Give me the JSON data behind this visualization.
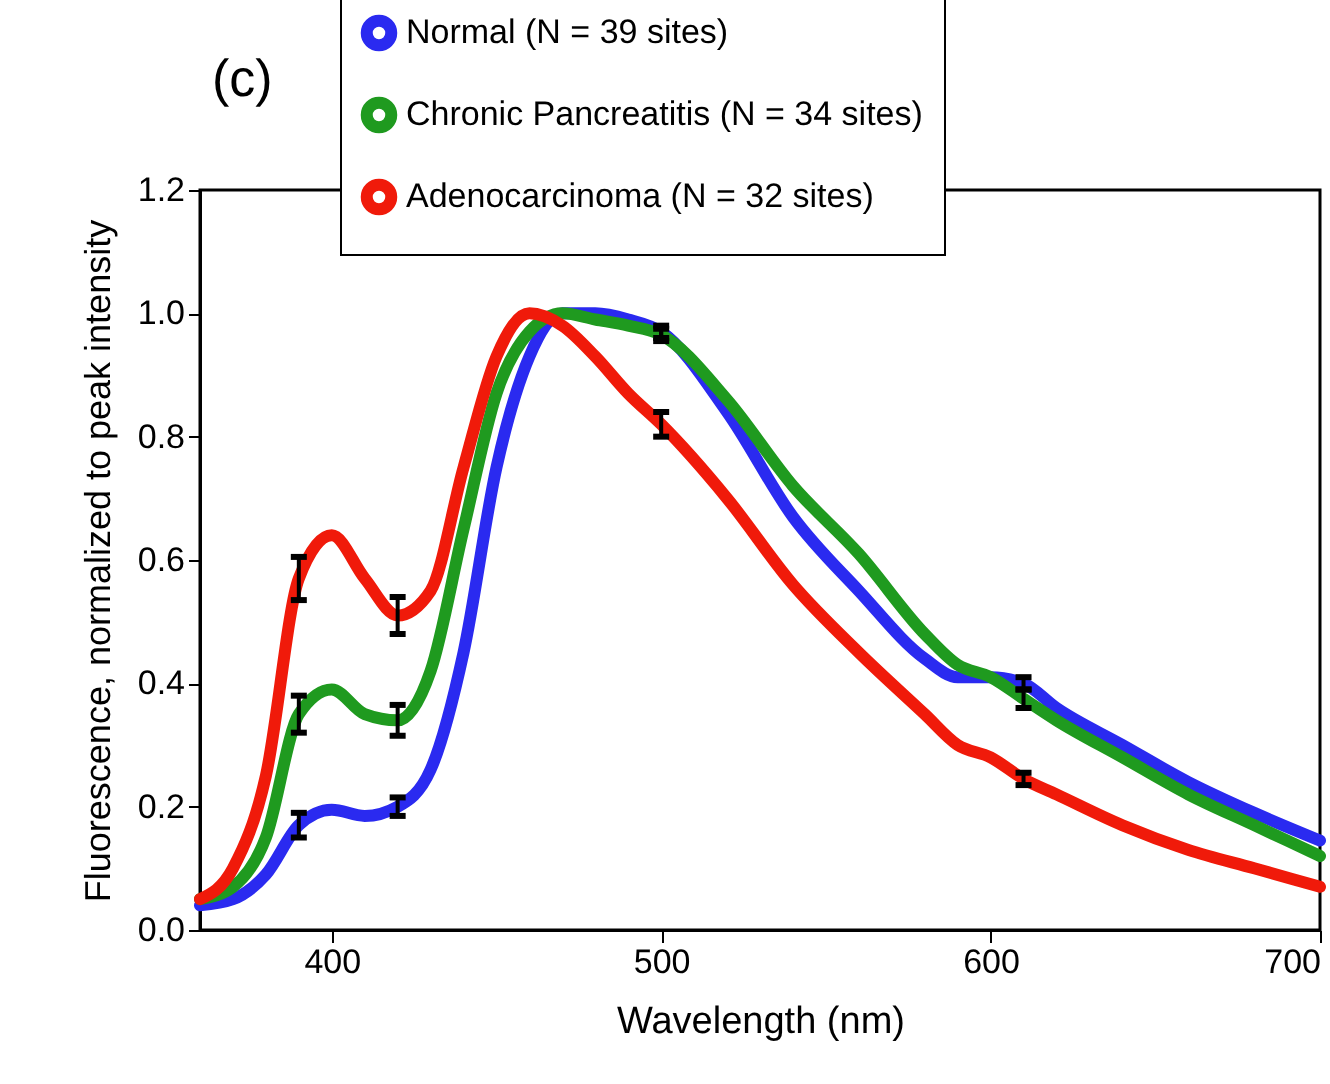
{
  "chart_data": {
    "type": "line",
    "annotations": [
      "(c)"
    ],
    "xlabel": "Wavelength (nm)",
    "ylabel": "Fluorescence, normalized to peak intensity",
    "x": [
      360,
      370,
      380,
      390,
      400,
      410,
      420,
      430,
      440,
      450,
      460,
      470,
      480,
      490,
      500,
      520,
      540,
      560,
      580,
      590,
      600,
      610,
      620,
      640,
      660,
      680,
      700
    ],
    "series": [
      {
        "name": "Normal (N = 39 sites)",
        "color": "#2a2af0",
        "values": [
          0.04,
          0.05,
          0.09,
          0.17,
          0.195,
          0.185,
          0.2,
          0.26,
          0.45,
          0.75,
          0.93,
          1.0,
          1.0,
          0.99,
          0.97,
          0.84,
          0.67,
          0.55,
          0.44,
          0.41,
          0.41,
          0.4,
          0.36,
          0.3,
          0.24,
          0.19,
          0.145
        ],
        "errors": [
          null,
          null,
          null,
          0.02,
          null,
          null,
          0.015,
          null,
          null,
          null,
          null,
          null,
          null,
          null,
          0.01,
          null,
          null,
          null,
          null,
          null,
          null,
          0.01,
          null,
          null,
          null,
          null,
          null
        ]
      },
      {
        "name": "Chronic Pancreatitis (N = 34 sites)",
        "color": "#1f9a1f",
        "values": [
          0.05,
          0.07,
          0.15,
          0.35,
          0.39,
          0.35,
          0.34,
          0.42,
          0.65,
          0.87,
          0.97,
          1.0,
          0.99,
          0.98,
          0.965,
          0.86,
          0.72,
          0.61,
          0.48,
          0.43,
          0.41,
          0.375,
          0.34,
          0.28,
          0.22,
          0.17,
          0.12
        ],
        "errors": [
          null,
          null,
          null,
          0.03,
          null,
          null,
          0.025,
          null,
          null,
          null,
          null,
          null,
          null,
          null,
          0.01,
          null,
          null,
          null,
          null,
          null,
          null,
          0.015,
          null,
          null,
          null,
          null,
          null
        ]
      },
      {
        "name": "Adenocarcinoma (N = 32 sites)",
        "color": "#f01a0a",
        "values": [
          0.05,
          0.1,
          0.25,
          0.57,
          0.64,
          0.57,
          0.51,
          0.55,
          0.75,
          0.93,
          1.0,
          0.98,
          0.93,
          0.87,
          0.82,
          0.7,
          0.56,
          0.45,
          0.35,
          0.3,
          0.28,
          0.245,
          0.22,
          0.17,
          0.13,
          0.1,
          0.07
        ],
        "errors": [
          null,
          null,
          null,
          0.035,
          null,
          null,
          0.03,
          null,
          null,
          null,
          null,
          null,
          null,
          null,
          0.02,
          null,
          null,
          null,
          null,
          null,
          null,
          0.01,
          null,
          null,
          null,
          null,
          null
        ]
      }
    ],
    "xlim": [
      360,
      700
    ],
    "xticks": [
      400,
      500,
      600,
      700
    ],
    "ylim": [
      0,
      1.2
    ],
    "yticks": [
      {
        "value": 0,
        "label": "0.0"
      },
      {
        "value": 0.2,
        "label": "0.2"
      },
      {
        "value": 0.4,
        "label": "0.4"
      },
      {
        "value": 0.6,
        "label": "0.6"
      },
      {
        "value": 0.8,
        "label": "0.8"
      },
      {
        "value": 1,
        "label": "1.0"
      },
      {
        "value": 1.2,
        "label": "1.2"
      }
    ],
    "grid": false,
    "legend": "top",
    "marker": "none",
    "line_style": "solid"
  }
}
